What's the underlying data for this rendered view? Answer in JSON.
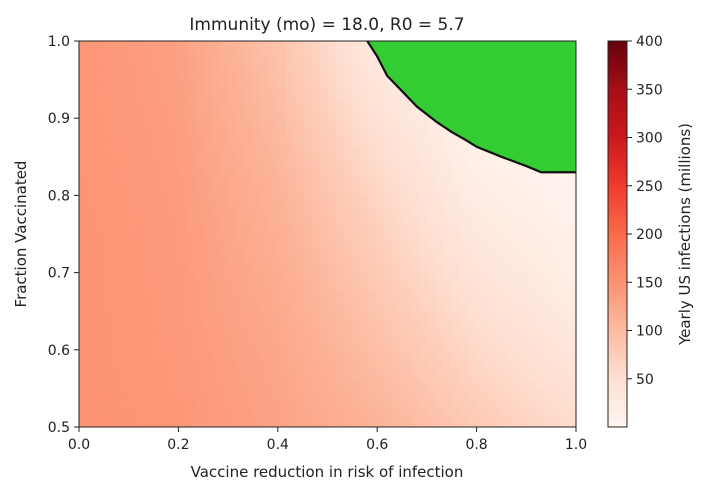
{
  "chart_data": {
    "type": "heatmap",
    "title": "Immunity (mo) = 18.0, R0 = 5.7",
    "xlabel": "Vaccine reduction in risk of infection",
    "ylabel": "Fraction Vaccinated",
    "xlim": [
      0.0,
      1.0
    ],
    "ylim": [
      0.5,
      1.0
    ],
    "x_ticks": [
      "0.0",
      "0.2",
      "0.4",
      "0.6",
      "0.8",
      "1.0"
    ],
    "y_ticks": [
      "0.5",
      "0.6",
      "0.7",
      "0.8",
      "0.9",
      "1.0"
    ],
    "colorbar": {
      "label": "Yearly US infections (millions)",
      "range": [
        0,
        400
      ],
      "ticks": [
        "50",
        "100",
        "150",
        "200",
        "250",
        "300",
        "350",
        "400"
      ],
      "colormap": "Reds"
    },
    "zero_region_color": "#33cc33",
    "zero_boundary": {
      "x": [
        0.58,
        0.6,
        0.62,
        0.65,
        0.68,
        0.7,
        0.72,
        0.75,
        0.78,
        0.8,
        0.85,
        0.9,
        0.93,
        1.0
      ],
      "y": [
        1.0,
        0.98,
        0.955,
        0.935,
        0.915,
        0.905,
        0.895,
        0.882,
        0.871,
        0.863,
        0.85,
        0.838,
        0.83,
        0.83
      ]
    },
    "values_grid": {
      "x": [
        0.0,
        0.2,
        0.4,
        0.6,
        0.8,
        1.0
      ],
      "y": [
        0.5,
        0.6,
        0.7,
        0.8,
        0.9,
        1.0
      ],
      "z": [
        [
          150,
          145,
          130,
          110,
          80,
          55
        ],
        [
          150,
          142,
          125,
          95,
          60,
          35
        ],
        [
          150,
          140,
          118,
          80,
          40,
          15
        ],
        [
          148,
          138,
          110,
          65,
          20,
          5
        ],
        [
          147,
          135,
          100,
          45,
          5,
          0
        ],
        [
          146,
          132,
          90,
          25,
          0,
          0
        ]
      ]
    }
  }
}
